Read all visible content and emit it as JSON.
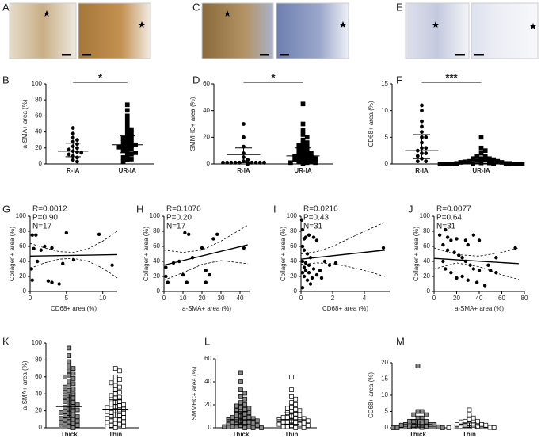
{
  "image_panels": [
    {
      "label": "A"
    },
    {
      "label": "C"
    },
    {
      "label": "E"
    }
  ],
  "chart_data": [
    {
      "type": "dot",
      "label": "B",
      "ylabel": "a-SMA+ area (%)",
      "ylim": [
        0,
        100
      ],
      "yticks": [
        0,
        20,
        40,
        60,
        80,
        100
      ],
      "significance": "*",
      "groups": [
        {
          "category": "R-IA",
          "marker": "circle",
          "color": "#000000",
          "values": [
            45,
            38,
            33,
            30,
            28,
            25,
            22,
            20,
            18,
            16,
            15,
            14,
            12,
            10,
            8,
            5,
            3
          ],
          "mean": 16,
          "lower": 9,
          "upper": 26
        },
        {
          "category": "UR-IA",
          "marker": "square",
          "color": "#000000",
          "values": [
            74,
            67,
            60,
            55,
            50,
            45,
            43,
            40,
            38,
            35,
            33,
            32,
            30,
            28,
            27,
            25,
            24,
            23,
            22,
            21,
            20,
            18,
            17,
            15,
            14,
            12,
            10,
            8,
            6,
            5,
            3
          ],
          "mean": 24,
          "lower": 14,
          "upper": 35
        }
      ]
    },
    {
      "type": "dot",
      "label": "D",
      "ylabel": "SMMHC+ area (%)",
      "ylim": [
        0,
        60
      ],
      "yticks": [
        0,
        20,
        40,
        60
      ],
      "significance": "*",
      "groups": [
        {
          "category": "R-IA",
          "marker": "circle",
          "color": "#000000",
          "values": [
            30,
            20,
            13,
            8,
            5,
            3,
            2,
            1,
            1,
            1,
            1,
            1,
            1,
            1,
            1,
            1,
            0
          ],
          "mean": 7,
          "lower": 1,
          "upper": 12
        },
        {
          "category": "UR-IA",
          "marker": "square",
          "color": "#000000",
          "values": [
            45,
            30,
            25,
            22,
            20,
            18,
            16,
            15,
            14,
            13,
            12,
            11,
            10,
            9,
            8,
            8,
            7,
            6,
            6,
            5,
            5,
            4,
            4,
            3,
            3,
            2,
            2,
            1,
            1,
            1,
            0
          ],
          "mean": 6,
          "lower": 2,
          "upper": 12
        }
      ]
    },
    {
      "type": "dot",
      "label": "F",
      "ylabel": "CD68+ area (%)",
      "ylim": [
        0,
        15
      ],
      "yticks": [
        0,
        5,
        10,
        15
      ],
      "significance": "***",
      "groups": [
        {
          "category": "R-IA",
          "marker": "circle",
          "color": "#000000",
          "values": [
            11,
            10,
            8,
            7,
            6,
            5,
            5,
            4,
            3,
            3,
            2.5,
            2,
            2,
            1.5,
            1,
            0.5,
            0.5
          ],
          "mean": 2.5,
          "lower": 1,
          "upper": 5.5
        },
        {
          "category": "UR-IA",
          "marker": "square",
          "color": "#000000",
          "values": [
            5,
            3,
            2.5,
            2,
            1.5,
            1.5,
            1,
            1,
            1,
            0.8,
            0.7,
            0.6,
            0.5,
            0.5,
            0.4,
            0.3,
            0.3,
            0.2,
            0.2,
            0.1,
            0.1,
            0.1,
            0.1,
            0,
            0,
            0,
            0,
            0,
            0,
            0,
            0
          ],
          "mean": 0.5,
          "lower": 0.1,
          "upper": 1.3
        }
      ]
    },
    {
      "type": "scatter",
      "label": "G",
      "ylabel": "Collagen+ area (%)",
      "xlabel": "CD68+ area (%)",
      "annotations": [
        "R=0.0012",
        "P=0.90",
        "N=17"
      ],
      "xlim": [
        0,
        12
      ],
      "xticks": [
        0,
        5,
        10
      ],
      "ylim": [
        0,
        100
      ],
      "yticks": [
        0,
        20,
        40,
        60,
        80,
        100
      ],
      "color": "#000000",
      "x": [
        0.3,
        0.8,
        0.5,
        1,
        0.2,
        0.3,
        1.5,
        2,
        3,
        2.5,
        3,
        4,
        4.5,
        5,
        6,
        9.5,
        11.3
      ],
      "values": [
        75,
        75,
        57,
        40,
        30,
        15,
        55,
        60,
        58,
        14,
        12,
        10,
        37,
        78,
        42,
        76,
        35
      ],
      "fit": {
        "x": [
          0,
          12
        ],
        "values": [
          47,
          49
        ]
      },
      "ci": {
        "x": [
          0,
          2,
          4,
          6,
          8,
          10,
          12
        ],
        "upper": [
          64,
          58,
          53,
          52,
          57,
          67,
          80
        ],
        "lower": [
          31,
          38,
          43,
          44,
          40,
          31,
          18
        ]
      }
    },
    {
      "type": "scatter",
      "label": "H",
      "ylabel": "Collagen+ area (%)",
      "xlabel": "a-SMA+ area (%)",
      "annotations": [
        "R=0.1076",
        "P=0.20",
        "N=17"
      ],
      "xlim": [
        0,
        45
      ],
      "xticks": [
        0,
        10,
        20,
        30,
        40
      ],
      "ylim": [
        0,
        100
      ],
      "yticks": [
        0,
        20,
        40,
        60,
        80,
        100
      ],
      "color": "#000000",
      "x": [
        1,
        1,
        2,
        5,
        8,
        10,
        11,
        12,
        13,
        15,
        20,
        22,
        22,
        24,
        26,
        28,
        42
      ],
      "values": [
        32,
        20,
        12,
        38,
        40,
        22,
        78,
        12,
        76,
        45,
        58,
        12,
        28,
        22,
        70,
        76,
        58
      ],
      "fit": {
        "x": [
          0,
          44
        ],
        "values": [
          35,
          62
        ]
      },
      "ci": {
        "x": [
          0,
          10,
          20,
          30,
          44
        ],
        "upper": [
          55,
          52,
          55,
          67,
          88
        ],
        "lower": [
          15,
          25,
          36,
          41,
          37
        ]
      }
    },
    {
      "type": "scatter",
      "label": "I",
      "ylabel": "Collagen+ area (%)",
      "xlabel": "CD68+ area (%)",
      "annotations": [
        "R=0.0216",
        "P=0.43",
        "N=31"
      ],
      "xlim": [
        0,
        5.6
      ],
      "xticks": [
        0,
        2,
        4
      ],
      "ylim": [
        0,
        100
      ],
      "yticks": [
        0,
        20,
        40,
        60,
        80,
        100
      ],
      "color": "#000000",
      "x": [
        0.05,
        0.1,
        0.2,
        0.3,
        0.5,
        0.8,
        1,
        0.1,
        0.2,
        0.4,
        0.6,
        0.1,
        0.3,
        0.5,
        0.8,
        1.2,
        1.5,
        1.8,
        2.2,
        0.1,
        0.2,
        0.4,
        0.6,
        0.1,
        0.3,
        0.7,
        1,
        1.3,
        0.2,
        5.2,
        0.5
      ],
      "values": [
        95,
        82,
        70,
        72,
        75,
        72,
        68,
        60,
        55,
        50,
        45,
        40,
        38,
        35,
        30,
        28,
        40,
        35,
        38,
        25,
        20,
        15,
        10,
        5,
        28,
        18,
        22,
        18,
        32,
        58,
        25
      ],
      "fit": {
        "x": [
          0,
          5.3
        ],
        "values": [
          43,
          55
        ]
      },
      "ci": {
        "x": [
          0,
          1,
          2,
          3,
          4,
          5.3
        ],
        "upper": [
          50,
          53,
          60,
          70,
          80,
          92
        ],
        "lower": [
          36,
          38,
          37,
          33,
          28,
          20
        ]
      }
    },
    {
      "type": "scatter",
      "label": "J",
      "ylabel": "Collagen+ area (%)",
      "xlabel": "a-SMA+ area (%)",
      "annotations": [
        "R=0.0077",
        "P=0.64",
        "N=31"
      ],
      "xlim": [
        0,
        80
      ],
      "xticks": [
        0,
        20,
        40,
        60,
        80
      ],
      "ylim": [
        0,
        100
      ],
      "yticks": [
        0,
        20,
        40,
        60,
        80,
        100
      ],
      "color": "#000000",
      "x": [
        5,
        10,
        12,
        15,
        20,
        28,
        30,
        35,
        40,
        8,
        12,
        18,
        22,
        25,
        28,
        32,
        35,
        40,
        48,
        50,
        55,
        15,
        20,
        25,
        30,
        38,
        45,
        10,
        55,
        72,
        8
      ],
      "values": [
        75,
        82,
        72,
        68,
        70,
        68,
        62,
        75,
        68,
        62,
        55,
        52,
        48,
        45,
        40,
        35,
        30,
        28,
        35,
        28,
        25,
        25,
        18,
        20,
        15,
        12,
        8,
        30,
        45,
        58,
        40
      ],
      "fit": {
        "x": [
          0,
          75
        ],
        "values": [
          44,
          37
        ]
      },
      "ci": {
        "x": [
          0,
          20,
          40,
          60,
          75
        ],
        "upper": [
          58,
          49,
          47,
          52,
          58
        ],
        "lower": [
          30,
          38,
          33,
          22,
          16
        ]
      }
    },
    {
      "type": "dot",
      "label": "K",
      "ylabel": "a-SMA+ area (%)",
      "ylim": [
        0,
        100
      ],
      "yticks": [
        0,
        20,
        40,
        60,
        80,
        100
      ],
      "groups": [
        {
          "category": "Thick",
          "marker": "square",
          "color": "#888888",
          "values": [
            94,
            85,
            78,
            73,
            70,
            67,
            64,
            62,
            60,
            58,
            55,
            52,
            50,
            48,
            46,
            44,
            42,
            40,
            38,
            36,
            35,
            33,
            31,
            30,
            28,
            27,
            25,
            24,
            22,
            21,
            20,
            19,
            18,
            17,
            15,
            14,
            13,
            12,
            11,
            10,
            9,
            8,
            7,
            6,
            5,
            4,
            3,
            2,
            1,
            0
          ],
          "mean": 25,
          "lower": 12,
          "upper": 40
        },
        {
          "category": "Thin",
          "marker": "square",
          "color": "#ffffff",
          "values": [
            70,
            67,
            60,
            57,
            55,
            53,
            50,
            48,
            45,
            42,
            40,
            38,
            36,
            35,
            33,
            31,
            30,
            28,
            27,
            26,
            25,
            24,
            23,
            22,
            21,
            20,
            19,
            18,
            17,
            15,
            14,
            13,
            12,
            11,
            10,
            9,
            8,
            7,
            6,
            5,
            4,
            3,
            2,
            1,
            0
          ],
          "mean": 22,
          "lower": 12,
          "upper": 33
        }
      ]
    },
    {
      "type": "dot",
      "label": "L",
      "ylabel": "SMMHC+ area (%)",
      "ylim": [
        0,
        60
      ],
      "yticks": [
        0,
        20,
        40,
        60
      ],
      "groups": [
        {
          "category": "Thick",
          "marker": "square",
          "color": "#888888",
          "values": [
            48,
            40,
            33,
            30,
            27,
            25,
            22,
            20,
            19,
            18,
            17,
            16,
            15,
            14,
            13,
            12,
            11,
            10,
            9,
            9,
            8,
            8,
            7,
            7,
            6,
            6,
            5,
            5,
            4,
            4,
            3,
            3,
            2,
            2,
            1,
            1,
            1,
            0,
            0,
            0
          ],
          "mean": 7,
          "lower": 3,
          "upper": 14
        },
        {
          "category": "Thin",
          "marker": "square",
          "color": "#ffffff",
          "values": [
            44,
            33,
            27,
            25,
            22,
            20,
            18,
            17,
            16,
            15,
            14,
            13,
            12,
            11,
            10,
            9,
            9,
            8,
            8,
            7,
            7,
            6,
            6,
            5,
            5,
            4,
            4,
            3,
            3,
            2,
            2,
            1,
            1,
            0,
            0
          ],
          "mean": 7,
          "lower": 3,
          "upper": 13
        }
      ]
    },
    {
      "type": "dot",
      "label": "M",
      "ylabel": "CD68+ area (%)",
      "ylim": [
        0,
        20
      ],
      "yticks": [
        0,
        5,
        10,
        15,
        20
      ],
      "groups": [
        {
          "category": "Thick",
          "marker": "square",
          "color": "#888888",
          "values": [
            19,
            5,
            5,
            4,
            4,
            3,
            3,
            2,
            2,
            2,
            1.5,
            1.5,
            1,
            1,
            1,
            0.8,
            0.6,
            0.5,
            0.4,
            0.3,
            0.2,
            0.1,
            0,
            0,
            0
          ],
          "mean": 1,
          "lower": 0.2,
          "upper": 2.5
        },
        {
          "category": "Thin",
          "marker": "square",
          "color": "#ffffff",
          "values": [
            5.5,
            4,
            3,
            2.5,
            2,
            2,
            1.8,
            1.5,
            1.2,
            1,
            1,
            0.8,
            0.6,
            0.5,
            0.4,
            0.3,
            0.2,
            0.1,
            0,
            0
          ],
          "mean": 0.8,
          "lower": 0.2,
          "upper": 1.5
        }
      ]
    }
  ]
}
